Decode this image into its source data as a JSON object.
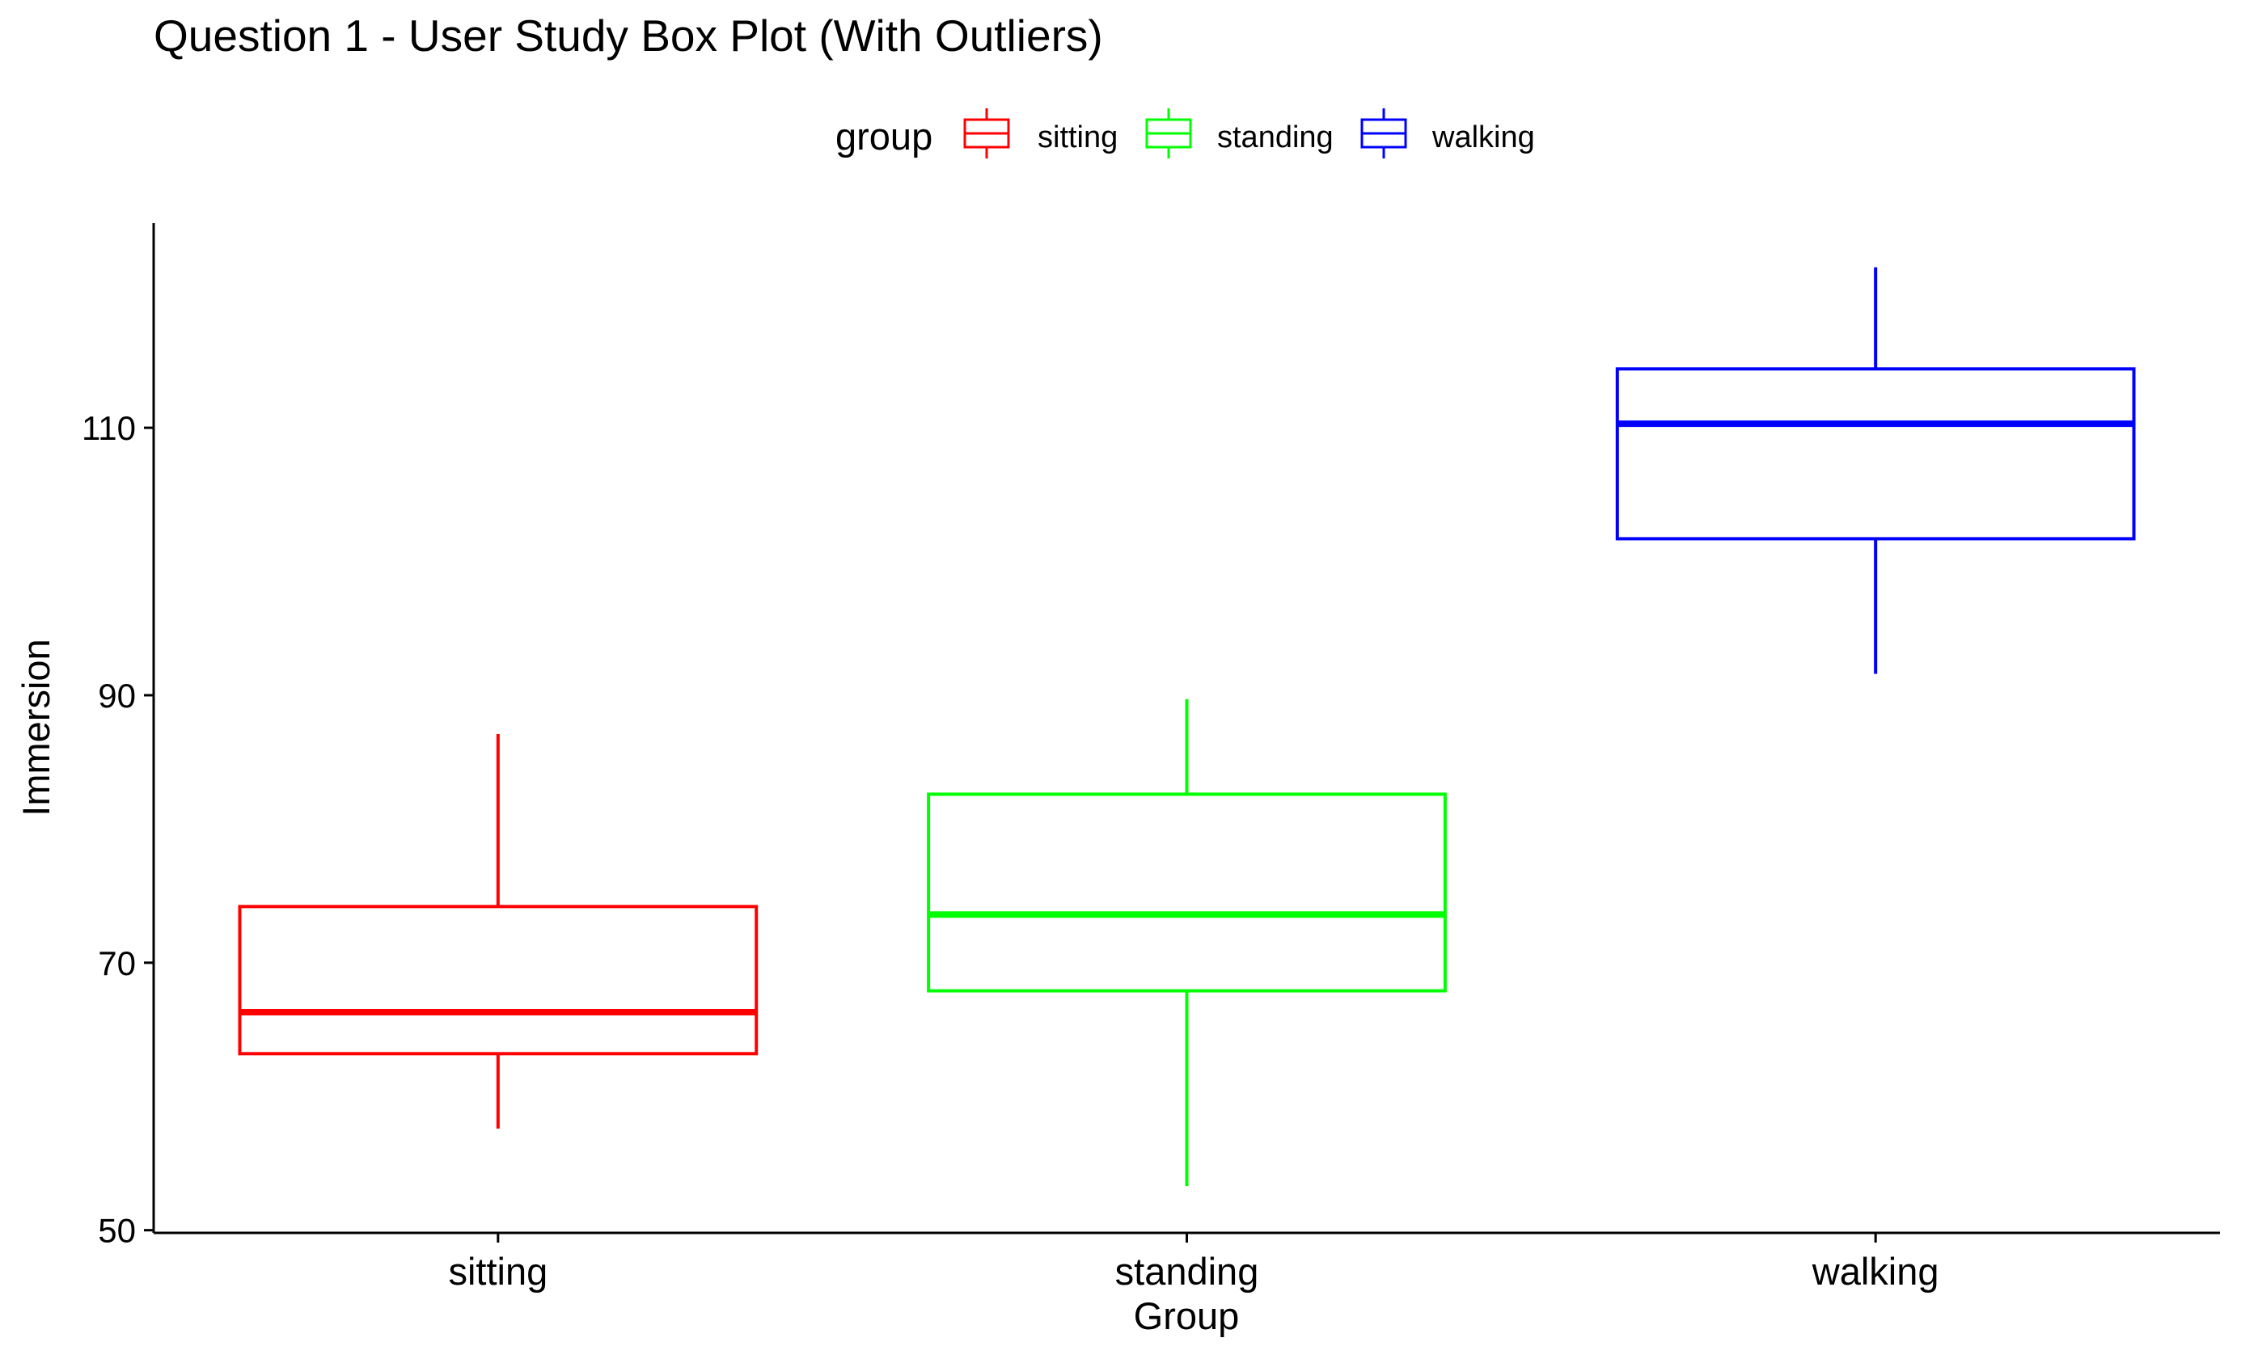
{
  "chart_data": {
    "type": "box",
    "title": "Question 1 - User Study Box Plot (With Outliers)",
    "xlabel": "Group",
    "ylabel": "Immersion",
    "categories": [
      "sitting",
      "standing",
      "walking"
    ],
    "ylim": [
      49.8,
      125.3
    ],
    "yticks": [
      50,
      70,
      90,
      110
    ],
    "legend": {
      "title": "group",
      "position": "top",
      "entries": [
        "sitting",
        "standing",
        "walking"
      ]
    },
    "grid": false,
    "series": [
      {
        "name": "sitting",
        "color": "#ff0000",
        "min": 57.6,
        "q1": 63.2,
        "median": 66.3,
        "q3": 74.2,
        "max": 87.1
      },
      {
        "name": "standing",
        "color": "#00ff00",
        "min": 53.3,
        "q1": 67.9,
        "median": 73.6,
        "q3": 82.6,
        "max": 89.7
      },
      {
        "name": "walking",
        "color": "#0000ff",
        "min": 91.6,
        "q1": 101.7,
        "median": 110.3,
        "q3": 114.4,
        "max": 122.0
      }
    ]
  }
}
